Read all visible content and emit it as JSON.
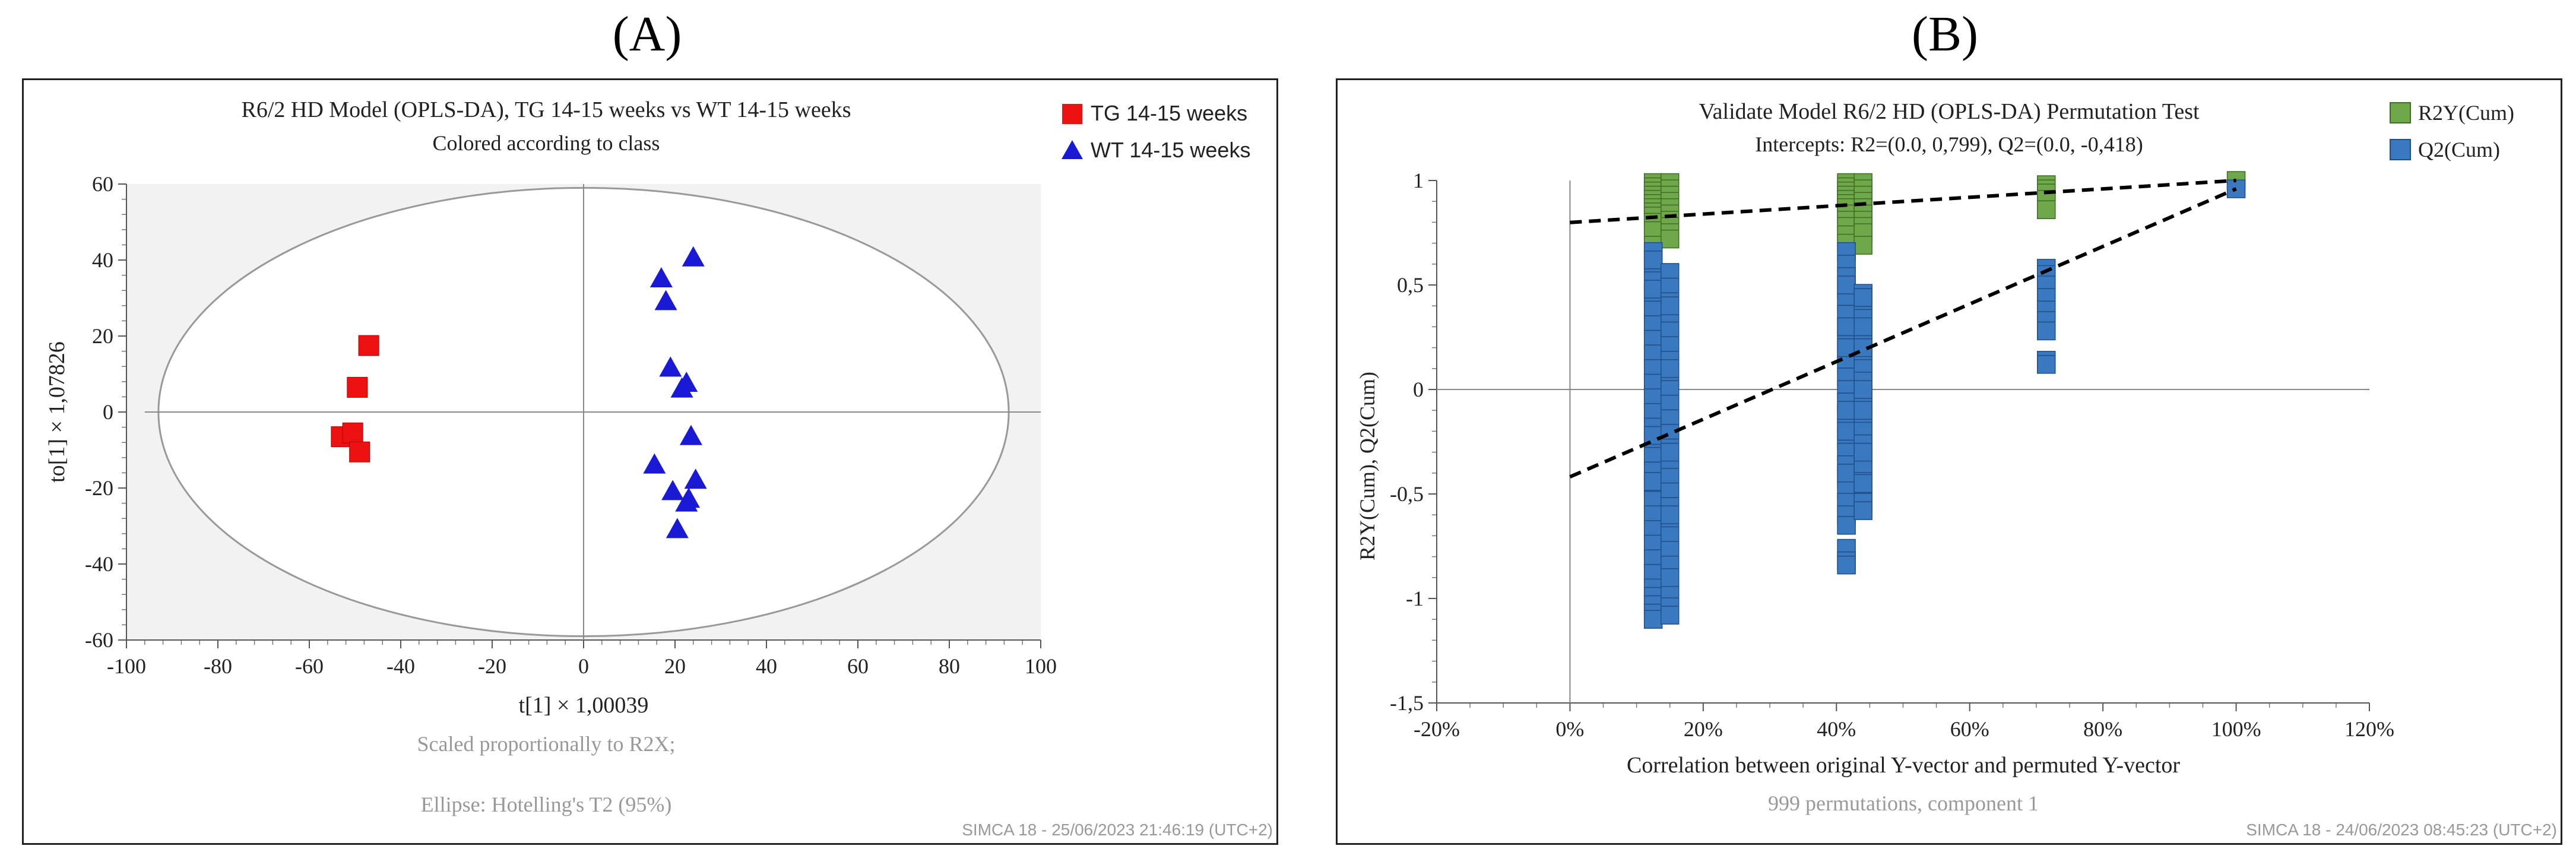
{
  "panel_a": {
    "letter": "(A)",
    "watermark": "SIMCA 18 - 25/06/2023 21:46:19 (UTC+2)"
  },
  "panel_b": {
    "letter": "(B)",
    "watermark": "SIMCA 18 - 24/06/2023 08:45:23 (UTC+2)"
  },
  "colors": {
    "tg": "#ee1111",
    "wt": "#1a1ad6",
    "r2y": "#6fa84a",
    "q2": "#3a78c0",
    "plot_bg": "#f2f2f2"
  },
  "chart_data": [
    {
      "type": "scatter",
      "title": "R6/2 HD Model (OPLS-DA), TG 14-15 weeks vs WT 14-15 weeks",
      "subtitle": "Colored according to class",
      "xlabel": "t[1] × 1,00039",
      "ylabel": "to[1] × 1,07826",
      "xlim": [
        -100,
        100
      ],
      "ylim": [
        -60,
        60
      ],
      "xticks": [
        -100,
        -80,
        -60,
        -40,
        -20,
        0,
        20,
        40,
        60,
        80,
        100
      ],
      "yticks": [
        -60,
        -40,
        -20,
        0,
        20,
        40,
        60
      ],
      "xtick_labels": [
        "-100",
        "-80",
        "-60",
        "-40",
        "-20",
        "0",
        "20",
        "40",
        "60",
        "80",
        "100"
      ],
      "ytick_labels": [
        "-60",
        "-40",
        "-20",
        "0",
        "20",
        "40",
        "60"
      ],
      "ellipse": {
        "rx": 93,
        "ry": 59
      },
      "legend": [
        "TG 14-15 weeks",
        "WT 14-15 weeks"
      ],
      "legend_position": "top-right",
      "notes": [
        "Scaled proportionally to R2X;",
        "Ellipse: Hotelling's T2 (95%)"
      ],
      "series": [
        {
          "name": "TG 14-15 weeks",
          "marker": "square",
          "x": [
            -47,
            -49.5,
            -53,
            -50.5,
            -49
          ],
          "y": [
            17.5,
            6.5,
            -6.5,
            -5.5,
            -10.5
          ]
        },
        {
          "name": "WT 14-15 weeks",
          "marker": "triangle",
          "x": [
            24,
            17,
            18,
            19,
            22.5,
            21.5,
            23.5,
            15.5,
            24.5,
            19.5,
            22.5,
            23,
            20.5
          ],
          "y": [
            40.5,
            35,
            29,
            11.5,
            7.5,
            6,
            -6.5,
            -14,
            -18,
            -21,
            -24,
            -23,
            -31
          ]
        }
      ]
    },
    {
      "type": "scatter",
      "title": "Validate Model R6/2 HD (OPLS-DA) Permutation Test",
      "subtitle": "Intercepts: R2=(0.0, 0,799), Q2=(0.0, -0,418)",
      "xlabel": "Correlation between original Y-vector and permuted Y-vector",
      "ylabel": "R2Y(Cum), Q2(Cum)",
      "xlim": [
        -20,
        120
      ],
      "ylim": [
        -1.5,
        1
      ],
      "xticks": [
        -20,
        0,
        20,
        40,
        60,
        80,
        100,
        120
      ],
      "yticks": [
        -1.5,
        -1,
        -0.5,
        0,
        0.5,
        1
      ],
      "xtick_labels": [
        "-20%",
        "0%",
        "20%",
        "40%",
        "60%",
        "80%",
        "100%",
        "120%"
      ],
      "ytick_labels": [
        "-1,5",
        "-1",
        "-0,5",
        "0",
        "0,5",
        "1"
      ],
      "legend": [
        "R2Y(Cum)",
        "Q2(Cum)"
      ],
      "legend_position": "top-right",
      "note": "999 permutations, component 1",
      "series": [
        {
          "name": "R2Y(Cum)",
          "marker": "square",
          "x": [
            12.5,
            12.5,
            12.5,
            12.5,
            12.5,
            12.5,
            12.5,
            12.5,
            12.5,
            12.5,
            12.5,
            12.5,
            15,
            15,
            15,
            15,
            15,
            15,
            15,
            15,
            15,
            15,
            41.5,
            41.5,
            41.5,
            41.5,
            41.5,
            41.5,
            41.5,
            41.5,
            41.5,
            41.5,
            41.5,
            41.5,
            44,
            44,
            44,
            44,
            44,
            44,
            44,
            44,
            44,
            44,
            71.5,
            71.5,
            71.5,
            71.5,
            71.5,
            100
          ],
          "y": [
            0.99,
            0.97,
            0.95,
            0.93,
            0.91,
            0.89,
            0.87,
            0.85,
            0.83,
            0.8,
            0.76,
            0.69,
            0.99,
            0.96,
            0.93,
            0.9,
            0.87,
            0.84,
            0.81,
            0.78,
            0.75,
            0.72,
            0.99,
            0.97,
            0.95,
            0.93,
            0.91,
            0.89,
            0.87,
            0.84,
            0.81,
            0.78,
            0.74,
            0.7,
            0.99,
            0.96,
            0.93,
            0.9,
            0.87,
            0.84,
            0.81,
            0.78,
            0.75,
            0.69,
            0.98,
            0.96,
            0.94,
            0.91,
            0.86,
            1.0
          ]
        },
        {
          "name": "Q2(Cum)",
          "marker": "square",
          "x": [
            12.5,
            12.5,
            12.5,
            12.5,
            12.5,
            12.5,
            12.5,
            12.5,
            12.5,
            12.5,
            12.5,
            12.5,
            12.5,
            12.5,
            12.5,
            12.5,
            12.5,
            12.5,
            12.5,
            12.5,
            12.5,
            12.5,
            12.5,
            12.5,
            12.5,
            12.5,
            12.5,
            12.5,
            12.5,
            12.5,
            12.5,
            12.5,
            15,
            15,
            15,
            15,
            15,
            15,
            15,
            15,
            15,
            15,
            15,
            15,
            15,
            15,
            15,
            15,
            15,
            15,
            15,
            15,
            15,
            15,
            15,
            15,
            15,
            15,
            15,
            15,
            15,
            15,
            41.5,
            41.5,
            41.5,
            41.5,
            41.5,
            41.5,
            41.5,
            41.5,
            41.5,
            41.5,
            41.5,
            41.5,
            41.5,
            41.5,
            41.5,
            41.5,
            41.5,
            41.5,
            41.5,
            41.5,
            41.5,
            41.5,
            41.5,
            41.5,
            41.5,
            41.5,
            41.5,
            41.5,
            41.5,
            41.5,
            41.5,
            41.5,
            44,
            44,
            44,
            44,
            44,
            44,
            44,
            44,
            44,
            44,
            44,
            44,
            44,
            44,
            44,
            44,
            44,
            44,
            44,
            44,
            44,
            44,
            44,
            44,
            44,
            44,
            71.5,
            71.5,
            71.5,
            71.5,
            71.5,
            71.5,
            71.5,
            71.5,
            71.5,
            100
          ],
          "y": [
            0.66,
            0.59,
            0.52,
            0.45,
            0.38,
            0.31,
            0.24,
            0.17,
            0.1,
            0.03,
            -0.04,
            -0.11,
            -0.18,
            -0.25,
            -0.32,
            -0.39,
            -0.46,
            -0.53,
            -0.6,
            -0.67,
            -0.74,
            -0.81,
            -0.88,
            -0.95,
            -0.99,
            -1.03,
            -1.07,
            -1.1,
            0.62,
            0.48,
            -0.22,
            -0.44,
            0.56,
            0.49,
            0.42,
            0.35,
            0.28,
            0.21,
            0.14,
            0.07,
            0.0,
            -0.07,
            -0.14,
            -0.21,
            -0.28,
            -0.35,
            -0.42,
            -0.49,
            -0.56,
            -0.63,
            -0.7,
            -0.77,
            -0.84,
            -0.91,
            -0.98,
            -1.04,
            -1.08,
            0.1,
            -0.3,
            -0.6,
            -0.9,
            0.4,
            0.66,
            0.6,
            0.54,
            0.48,
            0.42,
            0.36,
            0.3,
            0.24,
            0.18,
            0.12,
            0.06,
            0.0,
            -0.06,
            -0.12,
            -0.18,
            -0.24,
            -0.3,
            -0.36,
            -0.42,
            -0.48,
            -0.54,
            -0.6,
            -0.65,
            -0.76,
            -0.82,
            -0.84,
            0.5,
            0.2,
            -0.1,
            -0.4,
            0.3,
            -0.2,
            0.46,
            0.4,
            0.34,
            0.28,
            0.22,
            0.16,
            0.1,
            0.04,
            -0.02,
            -0.08,
            -0.14,
            -0.2,
            -0.26,
            -0.32,
            -0.38,
            -0.44,
            -0.5,
            -0.54,
            -0.58,
            0.44,
            0.2,
            -0.1,
            -0.3,
            0.0,
            0.3,
            -0.45,
            0.58,
            0.55,
            0.5,
            0.44,
            0.38,
            0.33,
            0.28,
            0.14,
            0.12,
            0.96
          ]
        }
      ],
      "regression_lines": [
        {
          "name": "R2Y(Cum)",
          "from": [
            0,
            0.799
          ],
          "to": [
            100,
            1.0
          ]
        },
        {
          "name": "Q2(Cum)",
          "from": [
            0,
            -0.418
          ],
          "to": [
            100,
            0.96
          ]
        }
      ]
    }
  ]
}
